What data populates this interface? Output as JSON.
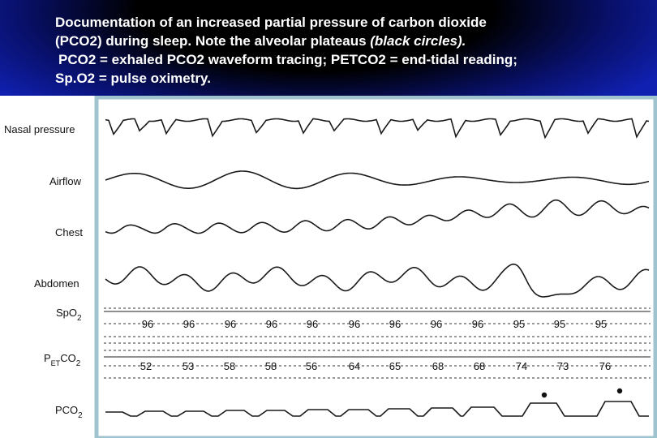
{
  "caption": {
    "line1": "Documentation of an increased partial pressure of carbon dioxide",
    "line2_a": "(PCO2) during sleep. Note the alveolar plateaus ",
    "line2_b": "(black circles).",
    "line3": "PCO2 = exhaled PCO2 waveform tracing; PETCO2 = end-tidal reading;",
    "line4": "Sp.O2 = pulse oximetry."
  },
  "colors": {
    "background_blue": "#0f1ea6",
    "panel_background": "#ffffff",
    "panel_border": "#9fc3cf",
    "trace": "#1a1a1a"
  },
  "chart_data": {
    "type": "line",
    "channels": [
      {
        "key": "nasal",
        "label": "Nasal pressure"
      },
      {
        "key": "airflow",
        "label": "Airflow"
      },
      {
        "key": "chest",
        "label": "Chest"
      },
      {
        "key": "abdomen",
        "label": "Abdomen"
      },
      {
        "key": "spo2",
        "label_main": "SpO",
        "label_sub": "2"
      },
      {
        "key": "petco2",
        "label_main": "P",
        "label_sub": "ET",
        "label_main2": "CO",
        "label_sub2": "2"
      },
      {
        "key": "pco2",
        "label_main": "PCO",
        "label_sub": "2"
      }
    ],
    "spo2_values": [
      "96",
      "96",
      "96",
      "96",
      "96",
      "96",
      "96",
      "96",
      "96",
      "95",
      "95",
      "95"
    ],
    "petco2_values": [
      "52",
      "53",
      "58",
      "58",
      "56",
      "64",
      "65",
      "68",
      "68",
      "74",
      "73",
      "76"
    ],
    "plateau_markers": 2
  }
}
